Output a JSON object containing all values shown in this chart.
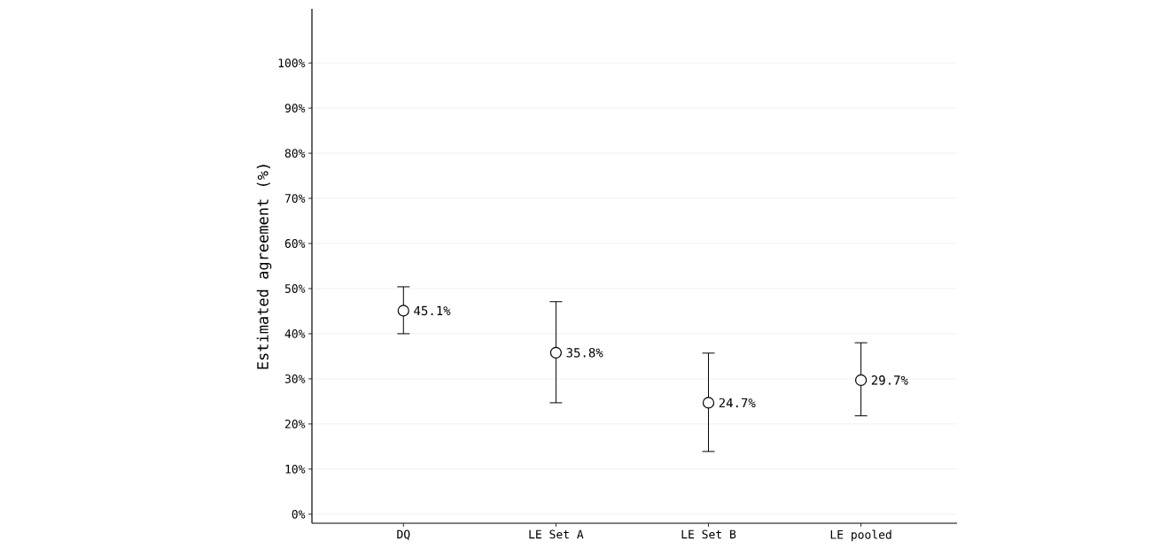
{
  "chart_data": {
    "type": "scatter",
    "ylabel": "Estimated agreement (%)",
    "categories": [
      "DQ",
      "LE Set A",
      "LE Set B",
      "LE pooled"
    ],
    "values": [
      45.1,
      35.8,
      24.7,
      29.7
    ],
    "errors": [
      [
        40.0,
        50.4
      ],
      [
        24.7,
        47.1
      ],
      [
        13.9,
        35.7
      ],
      [
        21.8,
        38.0
      ]
    ],
    "value_labels": [
      "45.1%",
      "35.8%",
      "24.7%",
      "29.7%"
    ],
    "color": "#000000",
    "marker": "circle",
    "grid": "y",
    "ylim": [
      -2,
      112
    ],
    "yticks": [
      {
        "value": 0,
        "label": "0%"
      },
      {
        "value": 10,
        "label": "10%"
      },
      {
        "value": 20,
        "label": "20%"
      },
      {
        "value": 30,
        "label": "30%"
      },
      {
        "value": 40,
        "label": "40%"
      },
      {
        "value": 50,
        "label": "50%"
      },
      {
        "value": 60,
        "label": "60%"
      },
      {
        "value": 70,
        "label": "70%"
      },
      {
        "value": 80,
        "label": "80%"
      },
      {
        "value": 90,
        "label": "90%"
      },
      {
        "value": 100,
        "label": "100%"
      }
    ]
  }
}
